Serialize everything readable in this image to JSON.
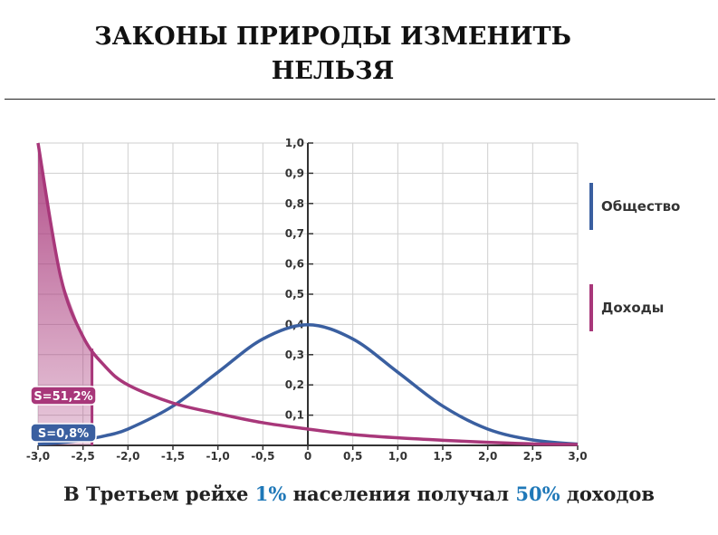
{
  "chart_data": {
    "type": "line",
    "title": [
      "ЗАКОНЫ ПРИРОДЫ ИЗМЕНИТЬ",
      "НЕЛЬЗЯ"
    ],
    "caption": [
      {
        "text": "В Третьем рейхе ",
        "color": "#222222"
      },
      {
        "text": "1%",
        "color": "#1f78b8"
      },
      {
        "text": " населения получал ",
        "color": "#222222"
      },
      {
        "text": "50%",
        "color": "#1f78b8"
      },
      {
        "text": " доходов",
        "color": "#222222"
      }
    ],
    "x": [
      -3,
      -2.75,
      -2.5,
      -2.25,
      -2,
      -1.5,
      -1,
      -0.5,
      0,
      0.5,
      1,
      1.5,
      2,
      2.5,
      3
    ],
    "series": [
      {
        "name": "Общество",
        "color": "#3a5fa0",
        "values": [
          0.004,
          0.009,
          0.018,
          0.032,
          0.054,
          0.13,
          0.242,
          0.352,
          0.399,
          0.352,
          0.242,
          0.13,
          0.054,
          0.018,
          0.004
        ]
      },
      {
        "name": "Доходы",
        "color": "#a8377a",
        "values": [
          1.0,
          0.56,
          0.36,
          0.26,
          0.2,
          0.14,
          0.105,
          0.075,
          0.054,
          0.036,
          0.025,
          0.017,
          0.01,
          0.005,
          0.003
        ]
      }
    ],
    "shaded_until": -2.4,
    "annotations": [
      {
        "text": "S=51,2%",
        "color": "#a8377a"
      },
      {
        "text": "S=0,8%",
        "color": "#3a5fa0"
      }
    ],
    "xlim": [
      -3,
      3
    ],
    "ylim": [
      0,
      1
    ],
    "xticks": [
      {
        "value": -3,
        "label": "-3,0"
      },
      {
        "value": -2.5,
        "label": "-2,5"
      },
      {
        "value": -2,
        "label": "-2,0"
      },
      {
        "value": -1.5,
        "label": "-1,5"
      },
      {
        "value": -1,
        "label": "-1,0"
      },
      {
        "value": -0.5,
        "label": "-0,5"
      },
      {
        "value": 0,
        "label": "0"
      },
      {
        "value": 0.5,
        "label": "0,5"
      },
      {
        "value": 1,
        "label": "1,0"
      },
      {
        "value": 1.5,
        "label": "1,5"
      },
      {
        "value": 2,
        "label": "2,0"
      },
      {
        "value": 2.5,
        "label": "2,5"
      },
      {
        "value": 3,
        "label": "3,0"
      }
    ],
    "yticks": [
      {
        "value": 0.1,
        "label": "0,1"
      },
      {
        "value": 0.2,
        "label": "0,2"
      },
      {
        "value": 0.3,
        "label": "0,3"
      },
      {
        "value": 0.4,
        "label": "0,4"
      },
      {
        "value": 0.5,
        "label": "0,5"
      },
      {
        "value": 0.6,
        "label": "0,6"
      },
      {
        "value": 0.7,
        "label": "0,7"
      },
      {
        "value": 0.8,
        "label": "0,8"
      },
      {
        "value": 0.9,
        "label": "0,9"
      },
      {
        "value": 1,
        "label": "1,0"
      }
    ],
    "grid": true
  }
}
